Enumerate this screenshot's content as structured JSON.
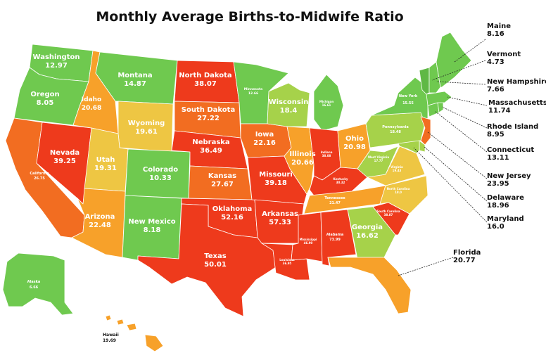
{
  "title": "Monthly Average Births-to-Midwife Ratio",
  "colors": {
    "green": "#6fc94f",
    "lightgreen": "#a6d24a",
    "yellow": "#eec643",
    "orange": "#f7a12a",
    "darkorange": "#f26d21",
    "red": "#ee3a1c"
  },
  "states": {
    "washington": {
      "name": "Washington",
      "value": "12.97",
      "color": "#6fc94f"
    },
    "oregon": {
      "name": "Oregon",
      "value": "8.05",
      "color": "#6fc94f"
    },
    "california": {
      "name": "California",
      "value": "26.75",
      "color": "#f26d21"
    },
    "nevada": {
      "name": "Nevada",
      "value": "39.25",
      "color": "#ee3a1c"
    },
    "idaho": {
      "name": "Idaho",
      "value": "20.68",
      "color": "#f7a12a"
    },
    "montana": {
      "name": "Montana",
      "value": "14.87",
      "color": "#6fc94f"
    },
    "wyoming": {
      "name": "Wyoming",
      "value": "19.61",
      "color": "#eec643"
    },
    "utah": {
      "name": "Utah",
      "value": "19.31",
      "color": "#eec643"
    },
    "arizona": {
      "name": "Arizona",
      "value": "22.48",
      "color": "#f7a12a"
    },
    "colorado": {
      "name": "Colorado",
      "value": "10.33",
      "color": "#6fc94f"
    },
    "newmexico": {
      "name": "New Mexico",
      "value": "8.18",
      "color": "#6fc94f"
    },
    "northdakota": {
      "name": "North Dakota",
      "value": "38.07",
      "color": "#ee3a1c"
    },
    "southdakota": {
      "name": "South Dakota",
      "value": "27.22",
      "color": "#f26d21"
    },
    "nebraska": {
      "name": "Nebraska",
      "value": "36.49",
      "color": "#ee3a1c"
    },
    "kansas": {
      "name": "Kansas",
      "value": "27.67",
      "color": "#f26d21"
    },
    "oklahoma": {
      "name": "Oklahoma",
      "value": "52.16",
      "color": "#ee3a1c"
    },
    "texas": {
      "name": "Texas",
      "value": "50.01",
      "color": "#ee3a1c"
    },
    "minnesota": {
      "name": "Minnesota",
      "value": "12.66",
      "color": "#6fc94f"
    },
    "iowa": {
      "name": "Iowa",
      "value": "22.16",
      "color": "#f26d21"
    },
    "missouri": {
      "name": "Missouri",
      "value": "39.18",
      "color": "#ee3a1c"
    },
    "arkansas": {
      "name": "Arkansas",
      "value": "57.33",
      "color": "#ee3a1c"
    },
    "louisiana": {
      "name": "Louisiana",
      "value": "36.95",
      "color": "#ee3a1c"
    },
    "wisconsin": {
      "name": "Wisconsin",
      "value": "18.4",
      "color": "#a6d24a"
    },
    "illinois": {
      "name": "Illinois",
      "value": "20.66",
      "color": "#f7a12a"
    },
    "michigan": {
      "name": "Michigan",
      "value": "16.61",
      "color": "#6fc94f"
    },
    "indiana": {
      "name": "Indiana",
      "value": "38.08",
      "color": "#ee3a1c"
    },
    "ohio": {
      "name": "Ohio",
      "value": "20.98",
      "color": "#f7a12a"
    },
    "kentucky": {
      "name": "Kentucky",
      "value": "30.32",
      "color": "#ee3a1c"
    },
    "tennessee": {
      "name": "Tennessee",
      "value": "21.47",
      "color": "#f7a12a"
    },
    "mississippi": {
      "name": "Mississippi",
      "value": "46.90",
      "color": "#ee3a1c"
    },
    "alabama": {
      "name": "Alabama",
      "value": "73.99",
      "color": "#ee3a1c"
    },
    "georgia": {
      "name": "Georgia",
      "value": "16.62",
      "color": "#a6d24a"
    },
    "florida": {
      "name": "Florida",
      "value": "20.77",
      "color": "#f7a12a"
    },
    "southcarolina": {
      "name": "South Carolina",
      "value": "38.87",
      "color": "#ee3a1c"
    },
    "northcarolina": {
      "name": "North Carolina",
      "value": "18.0",
      "color": "#eec643"
    },
    "virginia": {
      "name": "Virginia",
      "value": "19.43",
      "color": "#eec643"
    },
    "westvirginia": {
      "name": "West Virginia",
      "value": "17.77",
      "color": "#a6d24a"
    },
    "pennsylvania": {
      "name": "Pennsylvania",
      "value": "18.48",
      "color": "#a6d24a"
    },
    "newyork": {
      "name": "New York",
      "value": "15.55",
      "color": "#6fc94f"
    },
    "alaska": {
      "name": "Alaska",
      "value": "6.66",
      "color": "#6fc94f"
    },
    "hawaii": {
      "name": "Hawaii",
      "value": "19.69",
      "color": "#f7a12a"
    }
  },
  "callouts": {
    "maine": {
      "name": "Maine",
      "value": "8.16",
      "color": "#6fc94f"
    },
    "vermont": {
      "name": "Vermont",
      "value": "4.73",
      "color": "#5fb845"
    },
    "newhampshire": {
      "name": "New Hampshire",
      "value": "7.66",
      "color": "#6fc94f"
    },
    "massachusetts": {
      "name": "Massachusetts",
      "value": "11.74",
      "color": "#6fc94f"
    },
    "rhodeisland": {
      "name": "Rhode Island",
      "value": "8.95",
      "color": "#6fc94f"
    },
    "connecticut": {
      "name": "Connecticut",
      "value": "13.11",
      "color": "#6fc94f"
    },
    "newjersey": {
      "name": "New Jersey",
      "value": "23.95",
      "color": "#f26d21"
    },
    "delaware": {
      "name": "Delaware",
      "value": "18.96",
      "color": "#a6d24a"
    },
    "maryland": {
      "name": "Maryland",
      "value": "16.0",
      "color": "#a6d24a"
    }
  }
}
